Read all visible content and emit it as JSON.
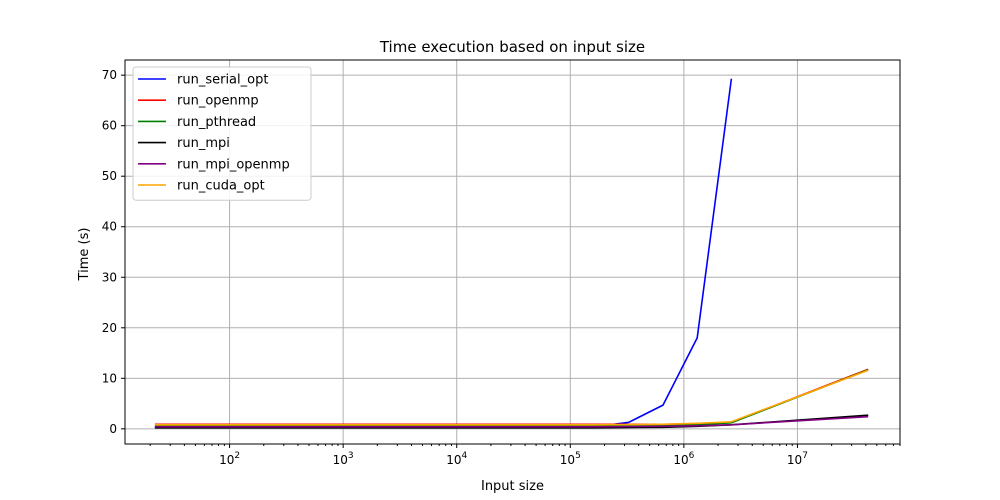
{
  "chart_data": {
    "type": "line",
    "title": "Time execution based on input size",
    "xlabel": "Input size",
    "ylabel": "Time (s)",
    "xscale": "log",
    "xlim": [
      12,
      80000000
    ],
    "ylim": [
      -3,
      73
    ],
    "yticks": [
      0,
      10,
      20,
      30,
      40,
      50,
      60,
      70
    ],
    "xticks": [
      {
        "value": 100,
        "base": "10",
        "exp": "2"
      },
      {
        "value": 1000,
        "base": "10",
        "exp": "3"
      },
      {
        "value": 10000,
        "base": "10",
        "exp": "4"
      },
      {
        "value": 100000,
        "base": "10",
        "exp": "5"
      },
      {
        "value": 1000000,
        "base": "10",
        "exp": "6"
      },
      {
        "value": 10000000,
        "base": "10",
        "exp": "7"
      }
    ],
    "grid": true,
    "legend_position": "top-left",
    "series": [
      {
        "name": "run_serial_opt",
        "color": "#0000ff",
        "x": [
          22,
          56,
          160,
          640,
          2560,
          10240,
          40960,
          163840,
          327680,
          655360,
          1310720,
          2621440
        ],
        "y": [
          0.3,
          0.3,
          0.3,
          0.3,
          0.3,
          0.3,
          0.3,
          0.4,
          1.3,
          4.7,
          18.0,
          69.3
        ]
      },
      {
        "name": "run_openmp",
        "color": "#ff0000",
        "x": [
          22,
          56,
          160,
          640,
          2560,
          10240,
          40960,
          163840,
          655360,
          1310720,
          2621440,
          41943040
        ],
        "y": [
          0.9,
          0.9,
          0.9,
          0.9,
          0.9,
          0.9,
          0.9,
          0.9,
          0.9,
          1.0,
          1.3,
          11.8
        ]
      },
      {
        "name": "run_pthread",
        "color": "#008000",
        "x": [
          22,
          56,
          160,
          640,
          2560,
          10240,
          40960,
          163840,
          655360,
          1310720,
          2621440,
          41943040
        ],
        "y": [
          0.5,
          0.5,
          0.5,
          0.5,
          0.5,
          0.5,
          0.5,
          0.5,
          0.6,
          0.8,
          1.2,
          11.7
        ]
      },
      {
        "name": "run_mpi",
        "color": "#000000",
        "x": [
          22,
          56,
          160,
          640,
          2560,
          10240,
          40960,
          163840,
          655360,
          1310720,
          2621440,
          41943040
        ],
        "y": [
          0.2,
          0.2,
          0.2,
          0.2,
          0.2,
          0.2,
          0.2,
          0.2,
          0.3,
          0.5,
          0.8,
          2.7
        ]
      },
      {
        "name": "run_mpi_openmp",
        "color": "#800080",
        "x": [
          22,
          56,
          160,
          640,
          2560,
          10240,
          40960,
          163840,
          655360,
          1310720,
          2621440,
          41943040
        ],
        "y": [
          0.4,
          0.4,
          0.4,
          0.4,
          0.4,
          0.4,
          0.4,
          0.4,
          0.5,
          0.6,
          0.8,
          2.4
        ]
      },
      {
        "name": "run_cuda_opt",
        "color": "#ffa500",
        "x": [
          22,
          56,
          160,
          640,
          2560,
          10240,
          40960,
          163840,
          655360,
          1310720,
          2621440,
          41943040
        ],
        "y": [
          0.8,
          0.8,
          0.8,
          0.8,
          0.8,
          0.8,
          0.8,
          0.8,
          0.9,
          1.1,
          1.4,
          11.6
        ]
      }
    ]
  }
}
